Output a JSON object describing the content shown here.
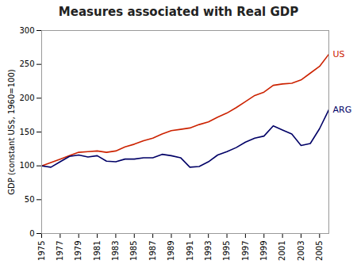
{
  "chart_data": {
    "type": "line",
    "title": "Measures associated with Real GDP",
    "ylabel": "GDP (constant US$, 1960=100)",
    "x": [
      1975,
      1976,
      1977,
      1978,
      1979,
      1980,
      1981,
      1982,
      1983,
      1984,
      1985,
      1986,
      1987,
      1988,
      1989,
      1990,
      1991,
      1992,
      1993,
      1994,
      1995,
      1996,
      1997,
      1998,
      1999,
      2000,
      2001,
      2002,
      2003,
      2004,
      2005,
      2006
    ],
    "series": [
      {
        "name": "US",
        "color": "#cc2200",
        "values": [
          100,
          105,
          110,
          115,
          120,
          121,
          122,
          120,
          122,
          128,
          132,
          137,
          141,
          147,
          152,
          154,
          156,
          161,
          165,
          172,
          178,
          186,
          195,
          204,
          209,
          219,
          221,
          222,
          227,
          237,
          247,
          265
        ]
      },
      {
        "name": "ARG",
        "color": "#000066",
        "values": [
          100,
          98,
          106,
          114,
          116,
          113,
          115,
          107,
          106,
          110,
          110,
          112,
          112,
          117,
          115,
          112,
          98,
          99,
          106,
          116,
          121,
          127,
          135,
          141,
          144,
          159,
          153,
          147,
          130,
          133,
          155,
          183
        ]
      }
    ],
    "xlim": [
      1975,
      2006
    ],
    "xticks": [
      1975,
      1977,
      1979,
      1981,
      1983,
      1985,
      1987,
      1989,
      1991,
      1993,
      1995,
      1997,
      1999,
      2001,
      2003,
      2005
    ],
    "ylim": [
      0,
      300
    ],
    "yticks": [
      0,
      50,
      100,
      150,
      200,
      250,
      300
    ],
    "grid": false
  }
}
